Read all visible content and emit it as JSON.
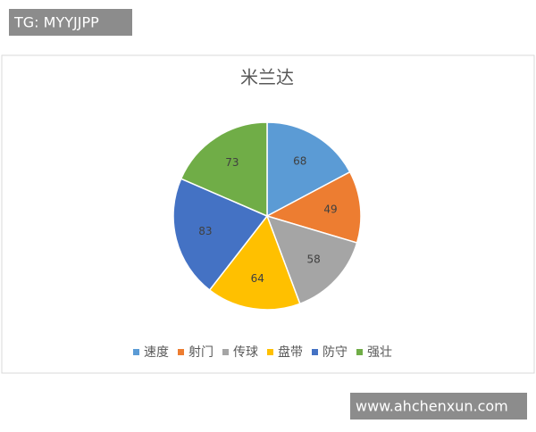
{
  "chart_data": {
    "type": "pie",
    "title": "米兰达",
    "categories": [
      "速度",
      "射门",
      "传球",
      "盘带",
      "防守",
      "强壮"
    ],
    "values": [
      68,
      49,
      58,
      64,
      83,
      73
    ],
    "colors": [
      "#5b9bd5",
      "#ed7d31",
      "#a5a5a5",
      "#ffc000",
      "#4472c4",
      "#70ad47"
    ],
    "legend": "bottom"
  },
  "watermarks": {
    "top": "TG: MYYJJPP",
    "bottom": "www.ahchenxun.com"
  }
}
